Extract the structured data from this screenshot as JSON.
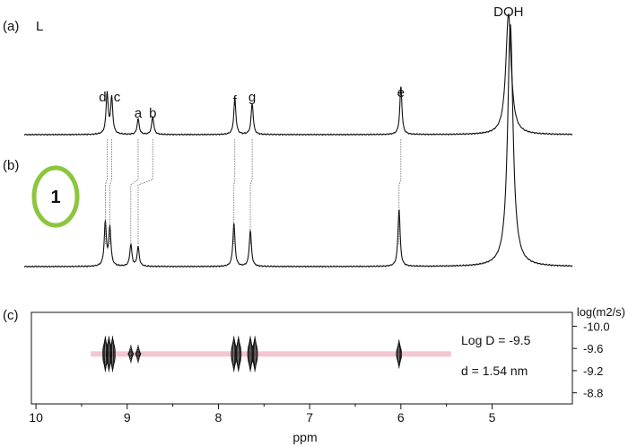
{
  "panels": {
    "a": {
      "label": "(a)",
      "name": "L"
    },
    "b": {
      "label": "(b)",
      "name": "1"
    },
    "c": {
      "label": "(c)"
    }
  },
  "colors": {
    "trace": "#111111",
    "ring": "#8cc63f",
    "band": "#f4c6cf"
  },
  "chart_data": [
    {
      "type": "line",
      "panel": "(a)",
      "title": "",
      "series": [
        {
          "name": "L"
        }
      ],
      "xlim": [
        10.05,
        4.12
      ],
      "peaks": [
        {
          "label": "d",
          "ppm": 9.22,
          "height": 0.34
        },
        {
          "label": "c",
          "ppm": 9.17,
          "height": 0.3
        },
        {
          "label": "a",
          "ppm": 8.88,
          "height": 0.13
        },
        {
          "label": "b",
          "ppm": 8.72,
          "height": 0.15
        },
        {
          "label": "f",
          "ppm": 7.82,
          "height": 0.3
        },
        {
          "label": "g",
          "ppm": 7.63,
          "height": 0.26
        },
        {
          "label": "e",
          "ppm": 6.0,
          "height": 0.4
        },
        {
          "label": "DOH",
          "ppm": 4.82,
          "height": 1.0
        }
      ]
    },
    {
      "type": "line",
      "panel": "(b)",
      "title": "",
      "series": [
        {
          "name": "1"
        }
      ],
      "xlim": [
        10.05,
        4.12
      ],
      "peaks": [
        {
          "ppm": 9.24,
          "height": 0.18
        },
        {
          "ppm": 9.19,
          "height": 0.16
        },
        {
          "ppm": 8.96,
          "height": 0.09
        },
        {
          "ppm": 8.88,
          "height": 0.08
        },
        {
          "ppm": 7.83,
          "height": 0.18
        },
        {
          "ppm": 7.65,
          "height": 0.15
        },
        {
          "ppm": 6.02,
          "height": 0.24
        },
        {
          "ppm": 4.8,
          "height": 1.0
        }
      ]
    },
    {
      "type": "scatter",
      "panel": "(c)",
      "title": "",
      "xlabel": "ppm",
      "ylabel": "log(m2/s)",
      "xlim": [
        10.05,
        4.12
      ],
      "ylim": [
        -8.6,
        -10.25
      ],
      "xticks": [
        10,
        9,
        8,
        7,
        6,
        5
      ],
      "yticks": [
        -10.0,
        -9.6,
        -9.2,
        -8.8
      ],
      "ytick_labels": [
        "-10.0",
        "-9.6",
        "-9.2",
        "-8.8"
      ],
      "xtick_labels": [
        "10",
        "9",
        "8",
        "7",
        "6",
        "5"
      ],
      "band": {
        "logD": -9.5,
        "ppm_from": 9.4,
        "ppm_to": 5.45
      },
      "contours": [
        {
          "ppm": 9.24,
          "logD": -9.5
        },
        {
          "ppm": 9.2,
          "logD": -9.5
        },
        {
          "ppm": 9.16,
          "logD": -9.5
        },
        {
          "ppm": 8.96,
          "logD": -9.5
        },
        {
          "ppm": 8.88,
          "logD": -9.5
        },
        {
          "ppm": 7.83,
          "logD": -9.5
        },
        {
          "ppm": 7.78,
          "logD": -9.5
        },
        {
          "ppm": 7.65,
          "logD": -9.5
        },
        {
          "ppm": 7.6,
          "logD": -9.5
        },
        {
          "ppm": 6.02,
          "logD": -9.5
        }
      ],
      "annotations": [
        "Log D = -9.5",
        "d = 1.54 nm"
      ]
    }
  ]
}
